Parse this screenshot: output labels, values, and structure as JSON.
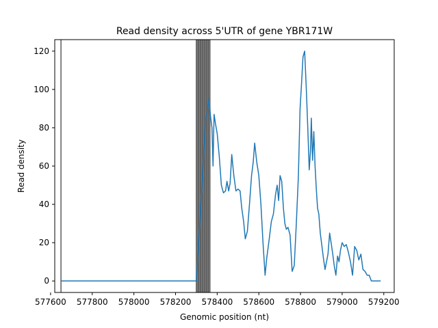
{
  "chart_data": {
    "type": "line",
    "title": "Read density across 5'UTR of gene YBR171W",
    "xlabel": "Genomic position (nt)",
    "ylabel": "Read density",
    "xlim": [
      577620,
      579250
    ],
    "ylim": [
      -6,
      126
    ],
    "xticks": [
      577600,
      577800,
      578000,
      578200,
      578400,
      578600,
      578800,
      579000,
      579200
    ],
    "yticks": [
      0,
      20,
      40,
      60,
      80,
      100,
      120
    ],
    "grid": false,
    "line_color": "#1f77b4",
    "vertical_line_color": "#000000",
    "vertical_lines": [
      577650,
      578300,
      578305,
      578310,
      578315,
      578320,
      578325,
      578330,
      578335,
      578340,
      578345,
      578350,
      578355,
      578360,
      578365
    ],
    "series": [
      {
        "x": [
          577650,
          578300,
          578330,
          578345,
          578352,
          578360,
          578368,
          578375,
          578380,
          578385,
          578392,
          578400,
          578410,
          578420,
          578430,
          578440,
          578447,
          578455,
          578462,
          578470,
          578480,
          578490,
          578500,
          578510,
          578518,
          578527,
          578535,
          578545,
          578555,
          578565,
          578573,
          578580,
          578590,
          578600,
          578610,
          578620,
          578630,
          578638,
          578650,
          578660,
          578670,
          578680,
          578688,
          578695,
          578702,
          578710,
          578718,
          578725,
          578732,
          578740,
          578750,
          578760,
          578770,
          578780,
          578790,
          578798,
          578805,
          578812,
          578820,
          578828,
          578835,
          578842,
          578848,
          578852,
          578858,
          578864,
          578870,
          578876,
          578882,
          578888,
          578895,
          578902,
          578910,
          578918,
          578925,
          578932,
          578940,
          578947,
          578955,
          578962,
          578970,
          578978,
          578985,
          578992,
          579000,
          579010,
          579020,
          579030,
          579040,
          579050,
          579060,
          579070,
          579080,
          579090,
          579100,
          579110,
          579120,
          579130,
          579140,
          579155,
          579170,
          579185
        ],
        "y": [
          0,
          0,
          55,
          85,
          87,
          95,
          86,
          80,
          60,
          87,
          82,
          77,
          65,
          50,
          46,
          47,
          52,
          47,
          51,
          66,
          55,
          47,
          48,
          47,
          38,
          31,
          22,
          26,
          40,
          55,
          62,
          72,
          62,
          55,
          40,
          20,
          3,
          12,
          22,
          31,
          35,
          45,
          50,
          42,
          55,
          52,
          38,
          30,
          27,
          28,
          24,
          5,
          8,
          30,
          55,
          90,
          103,
          117,
          120,
          100,
          80,
          58,
          68,
          85,
          63,
          78,
          60,
          48,
          38,
          35,
          25,
          19,
          12,
          6,
          10,
          14,
          25,
          20,
          14,
          8,
          3,
          13,
          10,
          16,
          20,
          18,
          19,
          15,
          10,
          3,
          18,
          16,
          11,
          14,
          6,
          5,
          3,
          3,
          0,
          0,
          0,
          0
        ]
      }
    ]
  }
}
